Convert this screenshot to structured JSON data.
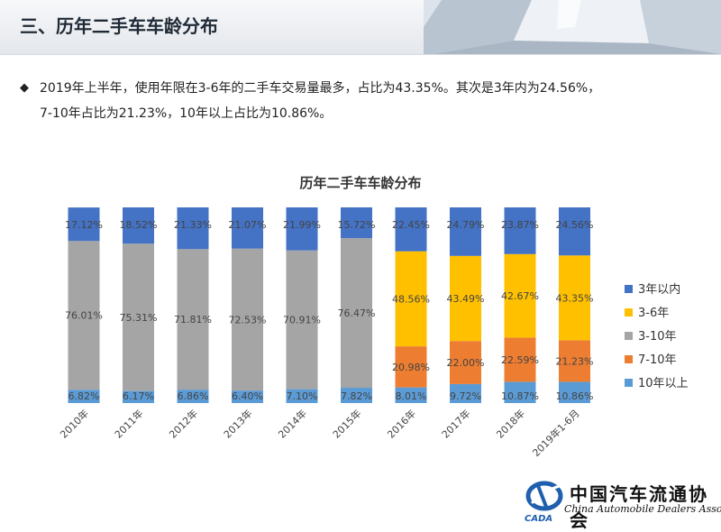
{
  "header": {
    "title": "三、历年二手车车龄分布"
  },
  "summary": {
    "bullet_icon": "diamond-icon",
    "text_line1": "2019年上半年，使用年限在3-6年的二手车交易量最多，占比为43.35%。其次是3年内为24.56%，",
    "text_line2": "7-10年占比为21.23%，10年以上占比为10.86%。"
  },
  "chart_data": {
    "type": "bar",
    "stacked": true,
    "normalized": true,
    "title": "历年二手车车龄分布",
    "xlabel": "",
    "ylabel": "",
    "ylim": [
      0,
      100
    ],
    "grid": false,
    "legend_position": "right",
    "categories": [
      "2010年",
      "2011年",
      "2012年",
      "2013年",
      "2014年",
      "2015年",
      "2016年",
      "2017年",
      "2018年",
      "2019年1-6月"
    ],
    "series": [
      {
        "name": "10年以上",
        "color": "#5b9bd5",
        "values": [
          6.82,
          6.17,
          6.86,
          6.4,
          7.1,
          7.82,
          8.01,
          9.72,
          10.87,
          10.86
        ],
        "labels": [
          "6.82%",
          "6.17%",
          "6.86%",
          "6.40%",
          "7.10%",
          "7.82%",
          "8.01%",
          "9.72%",
          "10.87%",
          "10.86%"
        ]
      },
      {
        "name": "7-10年",
        "color": "#ed7d31",
        "values": [
          null,
          null,
          null,
          null,
          null,
          null,
          20.98,
          22.0,
          22.59,
          21.23
        ],
        "labels": [
          "",
          "",
          "",
          "",
          "",
          "",
          "20.98%",
          "22.00%",
          "22.59%",
          "21.23%"
        ]
      },
      {
        "name": "3-10年",
        "color": "#a5a5a5",
        "values": [
          76.01,
          75.31,
          71.81,
          72.53,
          70.91,
          76.47,
          null,
          null,
          null,
          null
        ],
        "labels": [
          "76.01%",
          "75.31%",
          "71.81%",
          "72.53%",
          "70.91%",
          "76.47%",
          "",
          "",
          "",
          ""
        ]
      },
      {
        "name": "3-6年",
        "color": "#ffc000",
        "values": [
          null,
          null,
          null,
          null,
          null,
          null,
          48.56,
          43.49,
          42.67,
          43.35
        ],
        "labels": [
          "",
          "",
          "",
          "",
          "",
          "",
          "48.56%",
          "43.49%",
          "42.67%",
          "43.35%"
        ]
      },
      {
        "name": "3年以内",
        "color": "#4472c4",
        "values": [
          17.12,
          18.52,
          21.33,
          21.07,
          21.99,
          15.72,
          22.45,
          24.79,
          23.87,
          24.56
        ],
        "labels": [
          "17.12%",
          "18.52%",
          "21.33%",
          "21.07%",
          "21.99%",
          "15.72%",
          "22.45%",
          "24.79%",
          "23.87%",
          "24.56%"
        ]
      }
    ],
    "legend_order": [
      "3年以内",
      "3-6年",
      "3-10年",
      "7-10年",
      "10年以上"
    ]
  },
  "footer": {
    "logo_icon": "cada-logo-icon",
    "logo_abbr": "CADA",
    "logo_cn": "中国汽车流通协会",
    "logo_en": "China Automobile Dealers Association"
  }
}
